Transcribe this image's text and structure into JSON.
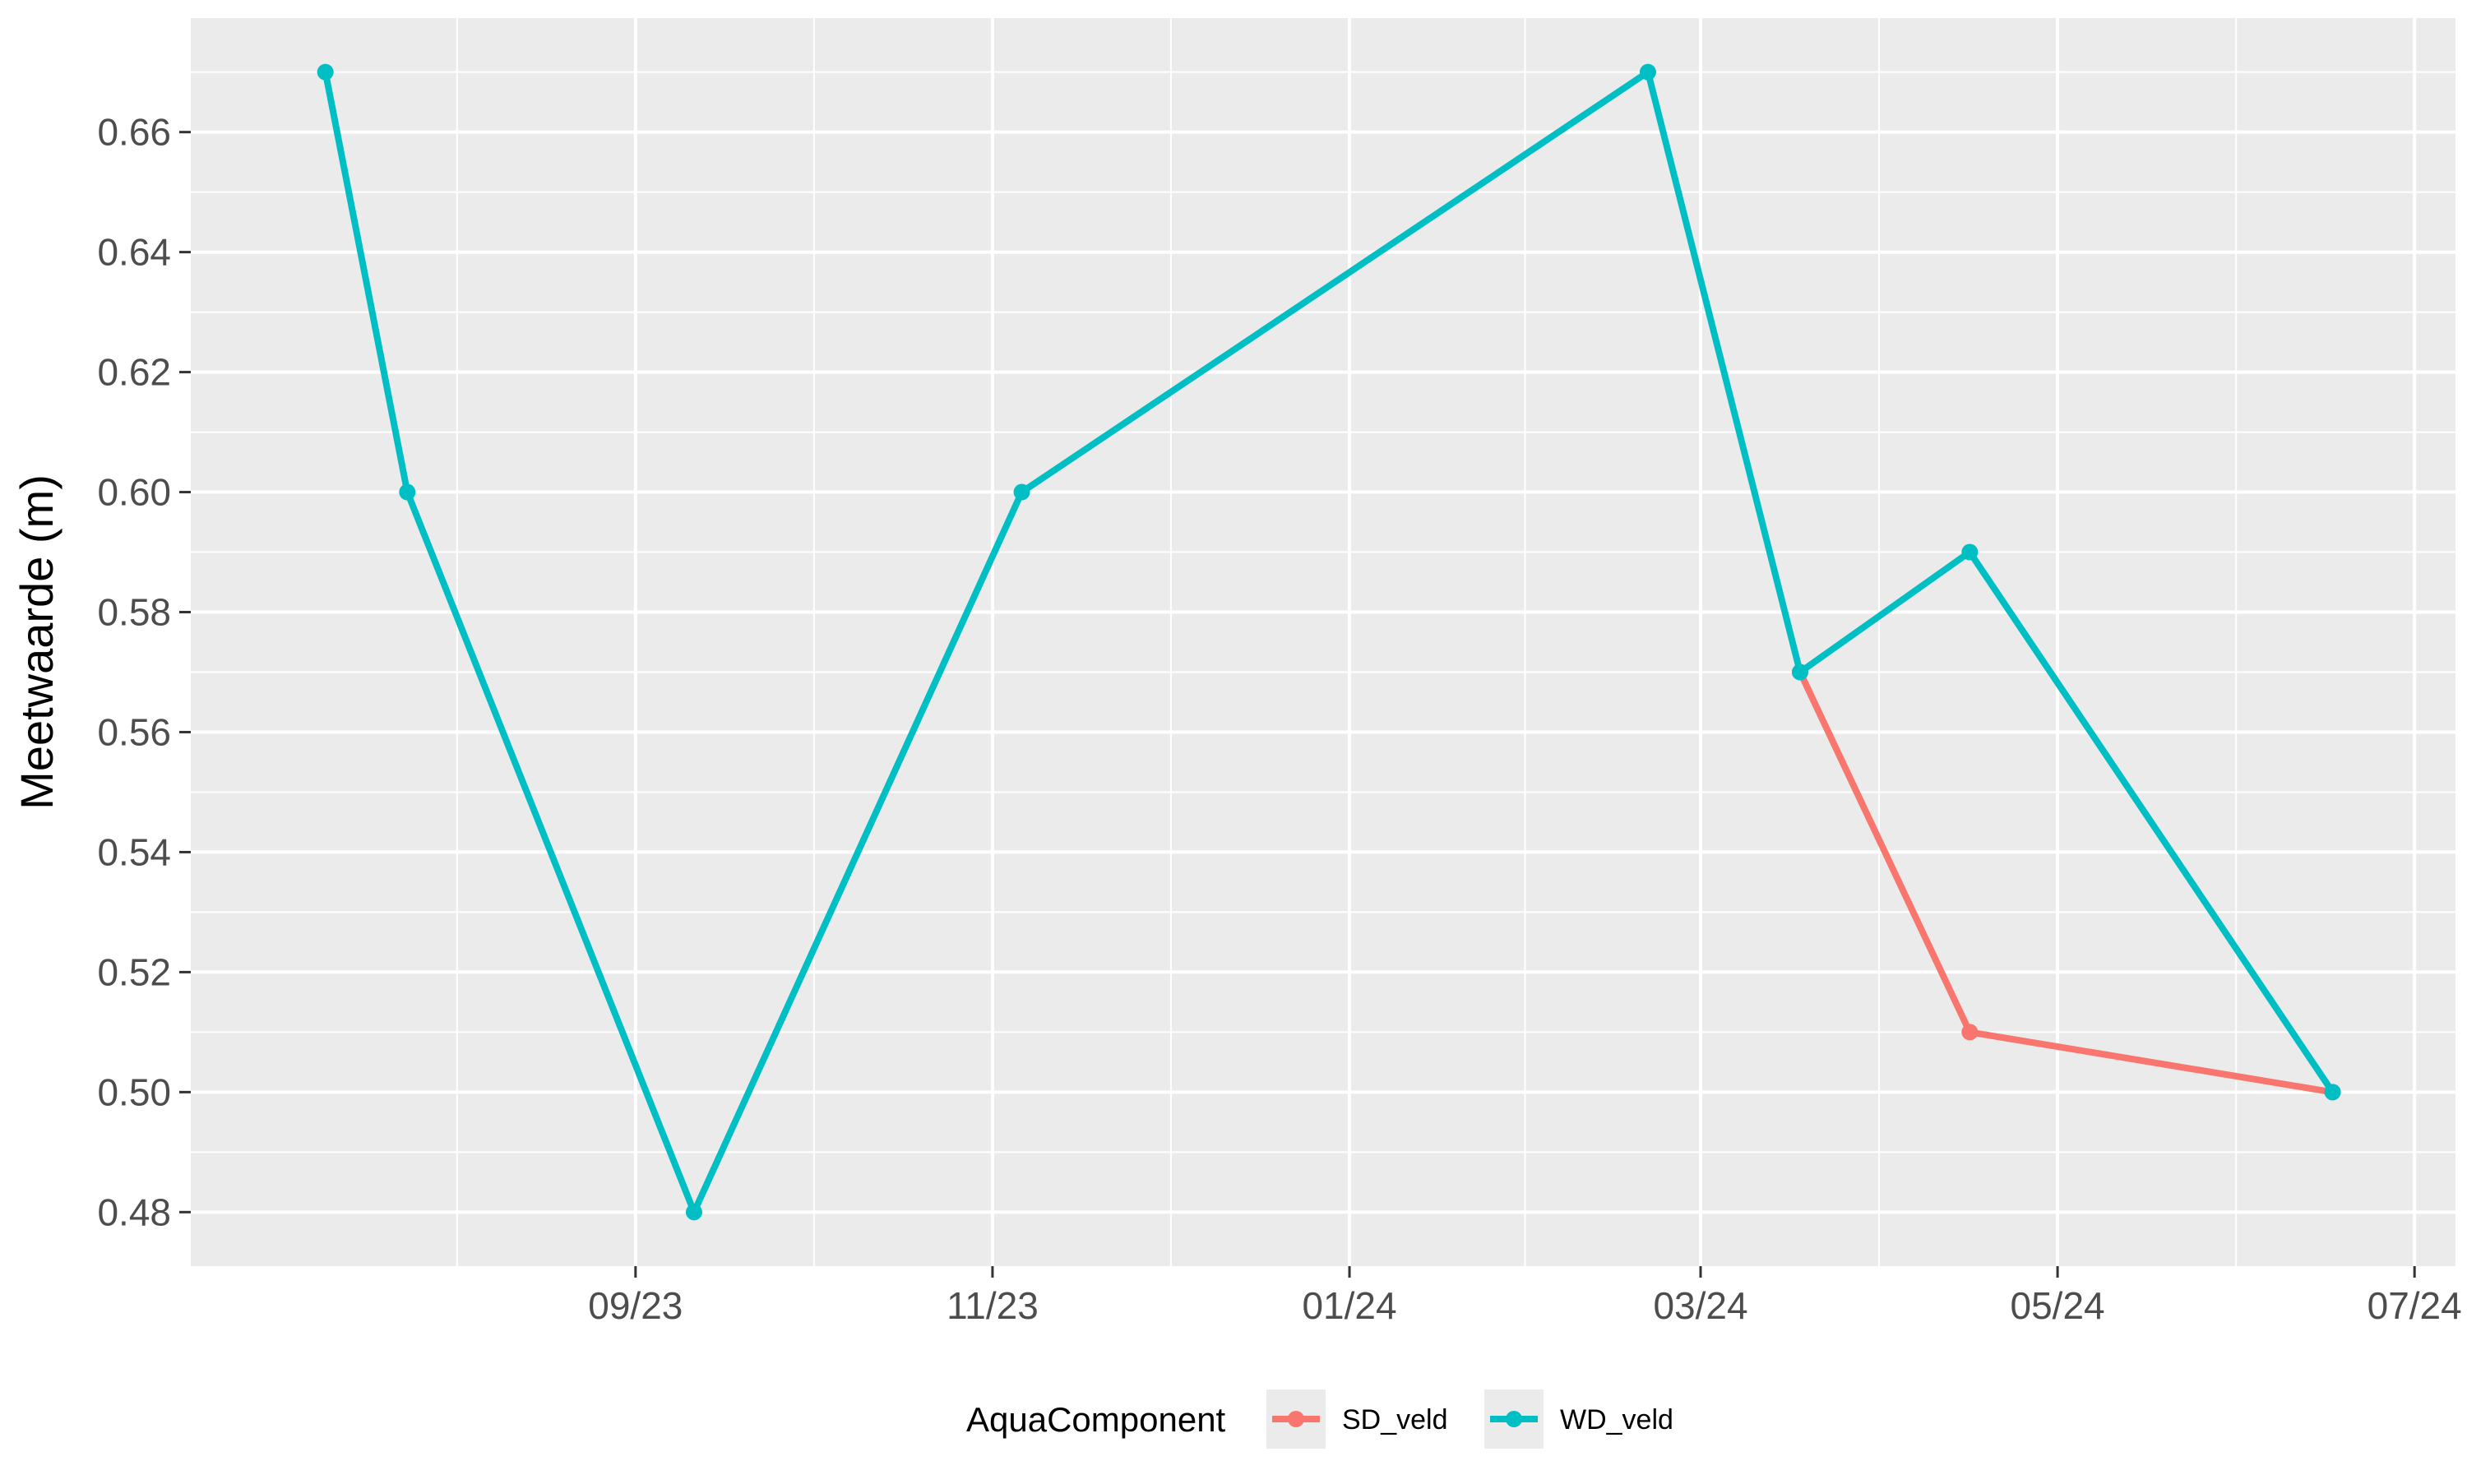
{
  "chart_data": {
    "type": "line",
    "title": "",
    "xlabel": "",
    "ylabel": "Meetwaarde (m)",
    "x_tick_labels": [
      "09/23",
      "11/23",
      "01/24",
      "03/24",
      "05/24",
      "07/24"
    ],
    "x_tick_dates": [
      "2023-09-01",
      "2023-11-01",
      "2024-01-01",
      "2024-03-01",
      "2024-05-01",
      "2024-07-01"
    ],
    "xlim": [
      "2023-06-17",
      "2024-07-08"
    ],
    "ylim": [
      0.471,
      0.679
    ],
    "y_ticks": [
      0.48,
      0.5,
      0.52,
      0.54,
      0.56,
      0.58,
      0.6,
      0.62,
      0.64,
      0.66
    ],
    "y_tick_labels": [
      "0.48",
      "0.50",
      "0.52",
      "0.54",
      "0.56",
      "0.58",
      "0.60",
      "0.62",
      "0.64",
      "0.66"
    ],
    "grid": true,
    "legend": {
      "title": "AquaComponent",
      "position": "bottom",
      "entries": [
        "SD_veld",
        "WD_veld"
      ]
    },
    "series": [
      {
        "name": "SD_veld",
        "color": "#F8766D",
        "points": [
          {
            "x": "2024-03-18",
            "y": 0.57
          },
          {
            "x": "2024-04-16",
            "y": 0.51
          },
          {
            "x": "2024-06-17",
            "y": 0.5
          }
        ]
      },
      {
        "name": "WD_veld",
        "color": "#00BFC4",
        "points": [
          {
            "x": "2023-07-10",
            "y": 0.67
          },
          {
            "x": "2023-07-24",
            "y": 0.6
          },
          {
            "x": "2023-09-11",
            "y": 0.48
          },
          {
            "x": "2023-11-06",
            "y": 0.6
          },
          {
            "x": "2024-02-21",
            "y": 0.67
          },
          {
            "x": "2024-03-18",
            "y": 0.57
          },
          {
            "x": "2024-04-16",
            "y": 0.59
          },
          {
            "x": "2024-06-17",
            "y": 0.5
          }
        ]
      }
    ]
  }
}
